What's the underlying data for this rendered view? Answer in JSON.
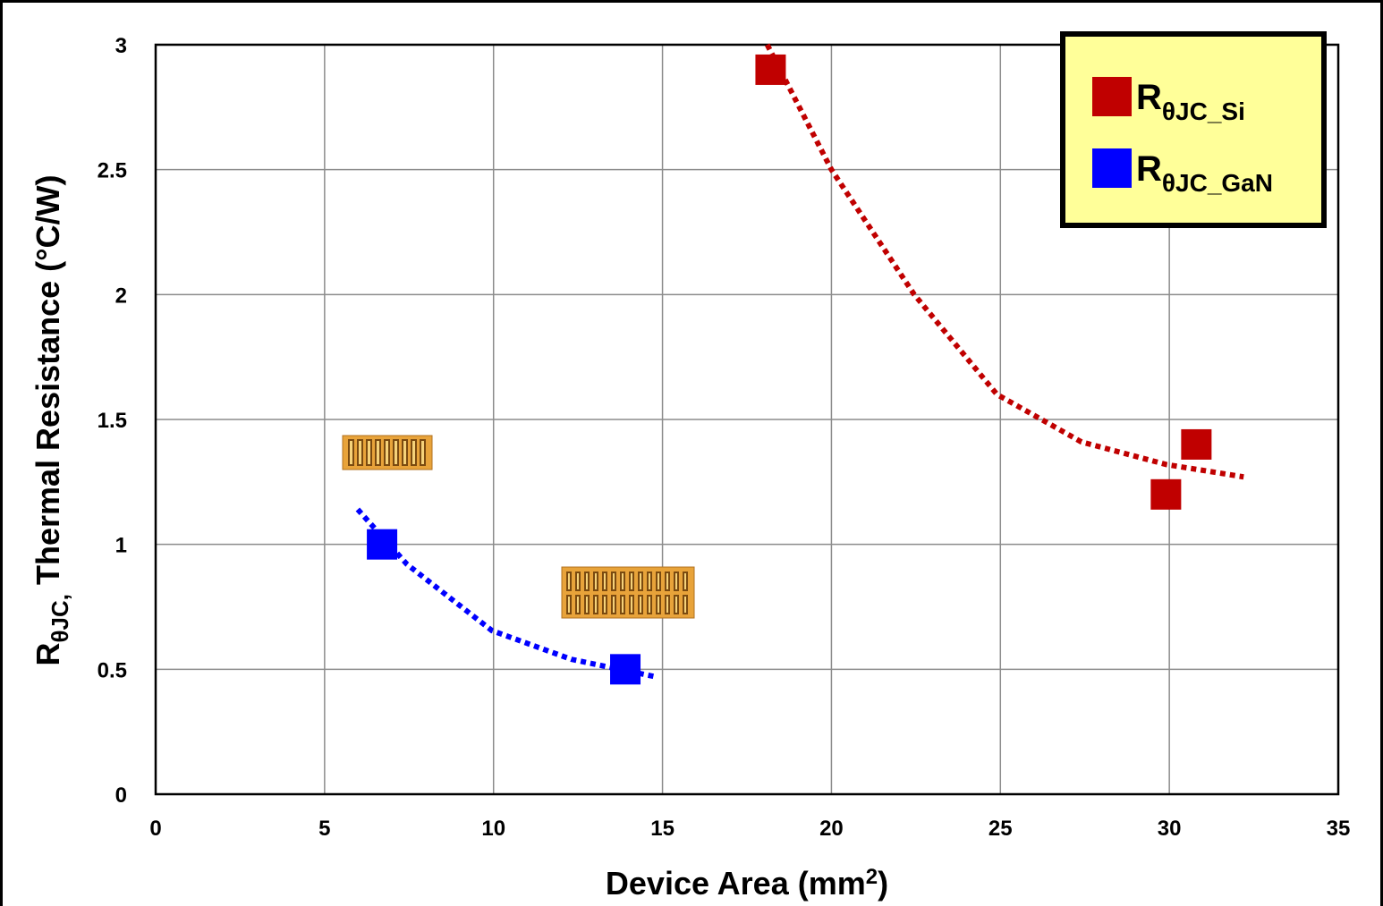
{
  "chart_data": {
    "type": "scatter",
    "xlabel": {
      "main": "Device Area (mm",
      "sup": "2",
      "end": ")"
    },
    "ylabel": {
      "main": "R",
      "sub": "θJC,",
      "rest": " Thermal Resistance (°C/W)"
    },
    "xlim": [
      0,
      35
    ],
    "xticks": [
      0,
      5,
      10,
      15,
      20,
      25,
      30,
      35
    ],
    "ylim": [
      0,
      3
    ],
    "yticks": [
      0,
      0.5,
      1,
      1.5,
      2,
      2.5,
      3
    ],
    "grid": true,
    "legend": "upper right",
    "series": [
      {
        "name": "R",
        "name_subscript": "θJC_Si",
        "color": "#c00000",
        "x": [
          18.2,
          29.9,
          30.8
        ],
        "values": [
          2.9,
          1.2,
          1.4
        ]
      },
      {
        "name": "R",
        "name_subscript": "θJC_GaN",
        "color": "#0000ff",
        "x": [
          6.7,
          13.9
        ],
        "values": [
          1.0,
          0.5
        ]
      }
    ],
    "trendlines": [
      {
        "color": "#c00000",
        "x": [
          18.1,
          20.0,
          22.45,
          24.9,
          27.4,
          29.9,
          32.2
        ],
        "values": [
          3.0,
          2.5,
          2.0,
          1.6,
          1.41,
          1.32,
          1.27
        ]
      },
      {
        "color": "#0000ff",
        "x": [
          5.98,
          7.44,
          9.95,
          12.3,
          14.8
        ],
        "values": [
          1.14,
          0.92,
          0.655,
          0.54,
          0.47
        ]
      }
    ]
  }
}
